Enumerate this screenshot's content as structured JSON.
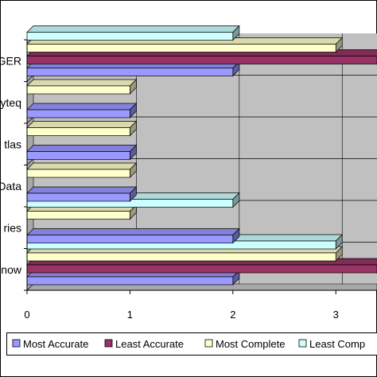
{
  "chart_data": {
    "type": "bar",
    "orientation": "horizontal",
    "style": "3d-clustered",
    "categories": [
      "Know",
      "ries",
      "Data",
      "tlas",
      "yteq",
      "GER"
    ],
    "series": [
      {
        "name": "Most Accurate",
        "color": "#9999ff",
        "values": [
          2,
          2,
          1,
          1,
          1,
          2
        ]
      },
      {
        "name": "Least Accurate",
        "color": "#993366",
        "values": [
          3.4,
          null,
          null,
          null,
          null,
          3.4
        ]
      },
      {
        "name": "Most Complete",
        "color": "#ffffcc",
        "values": [
          3,
          1,
          1,
          1,
          1,
          3
        ]
      },
      {
        "name": "Least Comp",
        "color": "#ccffff",
        "values": [
          3,
          2,
          null,
          null,
          null,
          2
        ]
      }
    ],
    "xlim": [
      0,
      3.4
    ],
    "xticks": [
      "0",
      "1",
      "2",
      "3"
    ],
    "title": "",
    "xlabel": "",
    "ylabel": "",
    "grid": "vertical",
    "legend_position": "bottom"
  }
}
